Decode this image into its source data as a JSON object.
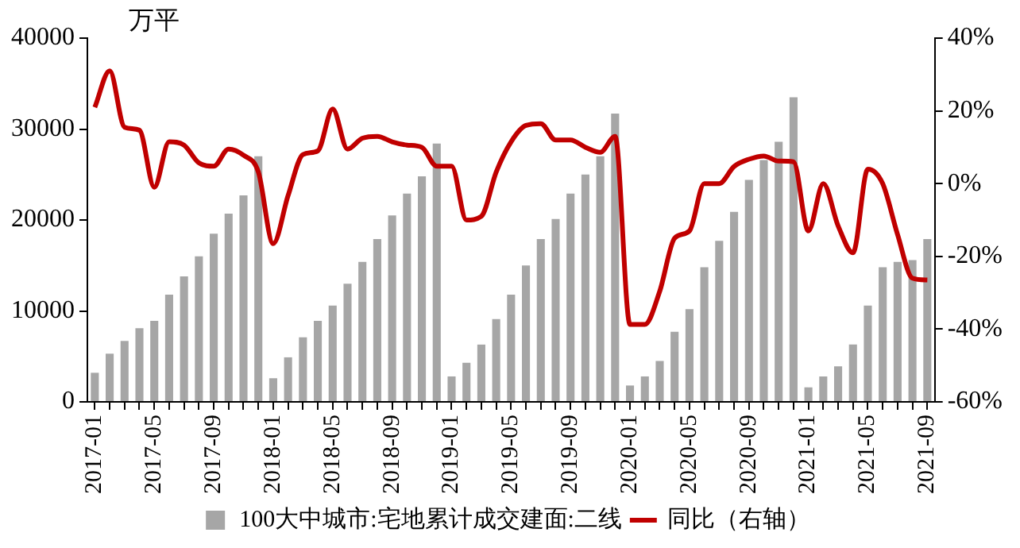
{
  "chart_data": {
    "type": "bar",
    "ylabel": "万平",
    "categories": [
      "2017-01",
      null,
      null,
      null,
      "2017-05",
      null,
      null,
      null,
      "2017-09",
      null,
      null,
      null,
      "2018-01",
      null,
      null,
      null,
      "2018-05",
      null,
      null,
      null,
      "2018-09",
      null,
      null,
      null,
      "2019-01",
      null,
      null,
      null,
      "2019-05",
      null,
      null,
      null,
      "2019-09",
      null,
      null,
      null,
      "2020-01",
      null,
      null,
      null,
      "2020-05",
      null,
      null,
      null,
      "2020-09",
      null,
      null,
      null,
      "2021-01",
      null,
      null,
      null,
      "2021-05",
      null,
      null,
      null,
      "2021-09"
    ],
    "series": [
      {
        "name": "100大中城市:宅地累计成交建面:二线",
        "color": "#a6a6a6",
        "values": [
          3200,
          5300,
          6700,
          8100,
          8900,
          11800,
          13800,
          16000,
          18500,
          20700,
          22700,
          27000,
          2600,
          4900,
          7100,
          8900,
          10600,
          13000,
          15400,
          17900,
          20500,
          22900,
          24800,
          28400,
          2800,
          4300,
          6300,
          9100,
          11800,
          15000,
          17900,
          20100,
          22900,
          25000,
          27000,
          31700,
          1800,
          2800,
          4500,
          7700,
          10200,
          14800,
          17700,
          20900,
          24400,
          26600,
          28600,
          33500,
          1600,
          2800,
          3900,
          6300,
          10600,
          14800,
          15400,
          15600,
          17900
        ]
      },
      {
        "name": "同比（右轴）",
        "type": "line",
        "axis": "y2",
        "color": "#c00000",
        "values": [
          21,
          31,
          15.5,
          14.7,
          -1,
          11.5,
          10.6,
          5.7,
          4.8,
          9.5,
          7.8,
          3.2,
          -16.5,
          -3.3,
          8,
          9,
          20.5,
          9.5,
          12.5,
          13,
          11.5,
          10.6,
          10,
          4.8,
          4.8,
          -10,
          -9,
          3.2,
          11.5,
          16,
          16.5,
          12,
          12,
          10,
          8.6,
          13,
          -38.7,
          -38.7,
          -29.6,
          -15,
          -13,
          0,
          0,
          4.7,
          6.7,
          7.6,
          6.2,
          6,
          -13,
          0,
          -11.6,
          -19,
          4,
          0,
          -14,
          -26,
          -26.5
        ]
      }
    ],
    "ylim": [
      0,
      40000
    ],
    "yticks": [
      0,
      10000,
      20000,
      30000,
      40000
    ],
    "y2lim": [
      -60,
      40
    ],
    "y2ticks": [
      {
        "value": -60,
        "label": "-60%"
      },
      {
        "value": -40,
        "label": "-40%"
      },
      {
        "value": -20,
        "label": "-20%"
      },
      {
        "value": 0,
        "label": "0%"
      },
      {
        "value": 20,
        "label": "20%"
      },
      {
        "value": 40,
        "label": "40%"
      }
    ],
    "grid": false,
    "legend": "bottom",
    "marker": "none",
    "line_style": "solid"
  }
}
